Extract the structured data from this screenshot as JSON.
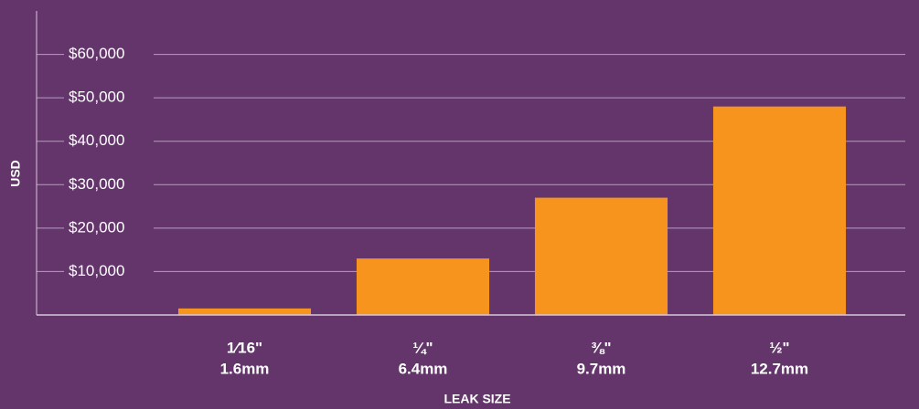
{
  "chart_data": {
    "type": "bar",
    "categories": [
      "1⁄16\"",
      "¼\"",
      "⅜\"",
      "½\""
    ],
    "category_sublabels": [
      "1.6mm",
      "6.4mm",
      "9.7mm",
      "12.7mm"
    ],
    "values": [
      1500,
      13000,
      27000,
      48000
    ],
    "color": "#f7941d",
    "x_label": "LEAK SIZE",
    "y_label": "USD",
    "ylim": [
      0,
      70000
    ],
    "yticks": [
      {
        "value": 10000,
        "label": "$10,000"
      },
      {
        "value": 20000,
        "label": "$20,000"
      },
      {
        "value": 30000,
        "label": "$30,000"
      },
      {
        "value": 40000,
        "label": "$40,000"
      },
      {
        "value": 50000,
        "label": "$50,000"
      },
      {
        "value": 60000,
        "label": "$60,000"
      }
    ],
    "grid": true
  }
}
